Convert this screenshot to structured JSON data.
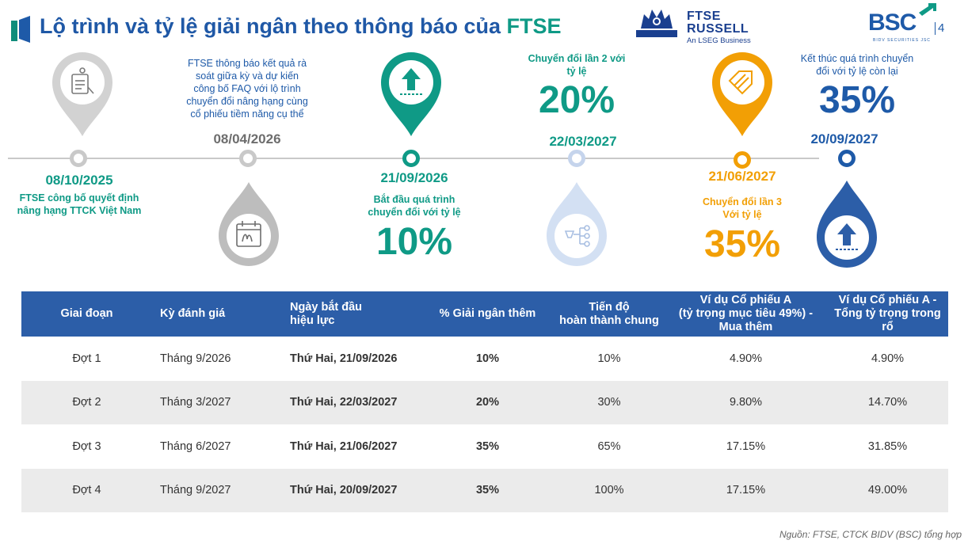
{
  "header": {
    "title_main": "Lộ trình và tỷ lệ giải ngân theo thông báo của ",
    "title_accent": "FTSE",
    "ftse_logo": {
      "line1": "FTSE",
      "line2": "RUSSELL",
      "line3": "An LSEG Business"
    },
    "bsc_logo": {
      "text": "BSC",
      "sub": "BIDV SECURITIES JSC"
    },
    "page_number": "4"
  },
  "timeline": [
    {
      "date": "08/10/2025",
      "desc_lines": [
        "FTSE công bố quyết định",
        "nâng hạng TTCK Việt Nam"
      ],
      "color": "#0f9a86",
      "icon": "document-icon"
    },
    {
      "date": "08/04/2026",
      "desc_lines": [
        "FTSE thông báo kết quả rà",
        "soát giữa kỳ và dự kiến",
        "công bố FAQ với lộ trình",
        "chuyển đổi nâng hạng cùng",
        "cổ phiếu tiềm năng cụ thể"
      ],
      "color": "#6d6d6d",
      "icon": "calendar-icon"
    },
    {
      "date": "21/09/2026",
      "desc_lines": [
        "Bắt đầu quá trình",
        "chuyển đổi với tỷ lệ"
      ],
      "percent": "10%",
      "color": "#0f9a86",
      "icon": "upload-icon"
    },
    {
      "date": "22/03/2027",
      "desc_lines": [
        "Chuyển đổi lần 2 với",
        "tỷ lệ"
      ],
      "percent": "20%",
      "color": "#0f9a86",
      "icon": "flow-icon"
    },
    {
      "date": "21/06/2027",
      "desc_lines": [
        "Chuyển đổi lần 3",
        "Với tỷ lệ"
      ],
      "percent": "35%",
      "color": "#f29f05",
      "icon": "tag-icon"
    },
    {
      "date": "20/09/2027",
      "desc_lines": [
        "Kết thúc quá trình chuyển",
        "đổi với tỷ lệ còn lại"
      ],
      "percent": "35%",
      "color": "#1e5aa8",
      "icon": "upload-icon"
    }
  ],
  "table": {
    "headers": [
      [
        "Giai đoạn"
      ],
      [
        "Kỳ đánh giá"
      ],
      [
        "Ngày bắt đầu",
        "hiệu lực"
      ],
      [
        "% Giải ngân thêm"
      ],
      [
        "Tiến độ",
        "hoàn thành chung"
      ],
      [
        "Ví dụ Cổ phiếu A",
        "(tỷ trọng mục tiêu 49%) -",
        "Mua thêm"
      ],
      [
        "Ví dụ Cổ phiếu A -",
        "Tổng tỷ trọng trong rổ"
      ]
    ],
    "rows": [
      [
        "Đợt 1",
        "Tháng 9/2026",
        "Thứ Hai, 21/09/2026",
        "10%",
        "10%",
        "4.90%",
        "4.90%"
      ],
      [
        "Đợt 2",
        "Tháng 3/2027",
        "Thứ Hai, 22/03/2027",
        "20%",
        "30%",
        "9.80%",
        "14.70%"
      ],
      [
        "Đợt 3",
        "Tháng 6/2027",
        "Thứ Hai, 21/06/2027",
        "35%",
        "65%",
        "17.15%",
        "31.85%"
      ],
      [
        "Đợt 4",
        "Tháng 9/2027",
        "Thứ Hai, 20/09/2027",
        "35%",
        "100%",
        "17.15%",
        "49.00%"
      ]
    ]
  },
  "source": "Nguồn: FTSE, CTCK BIDV (BSC) tổng hợp"
}
